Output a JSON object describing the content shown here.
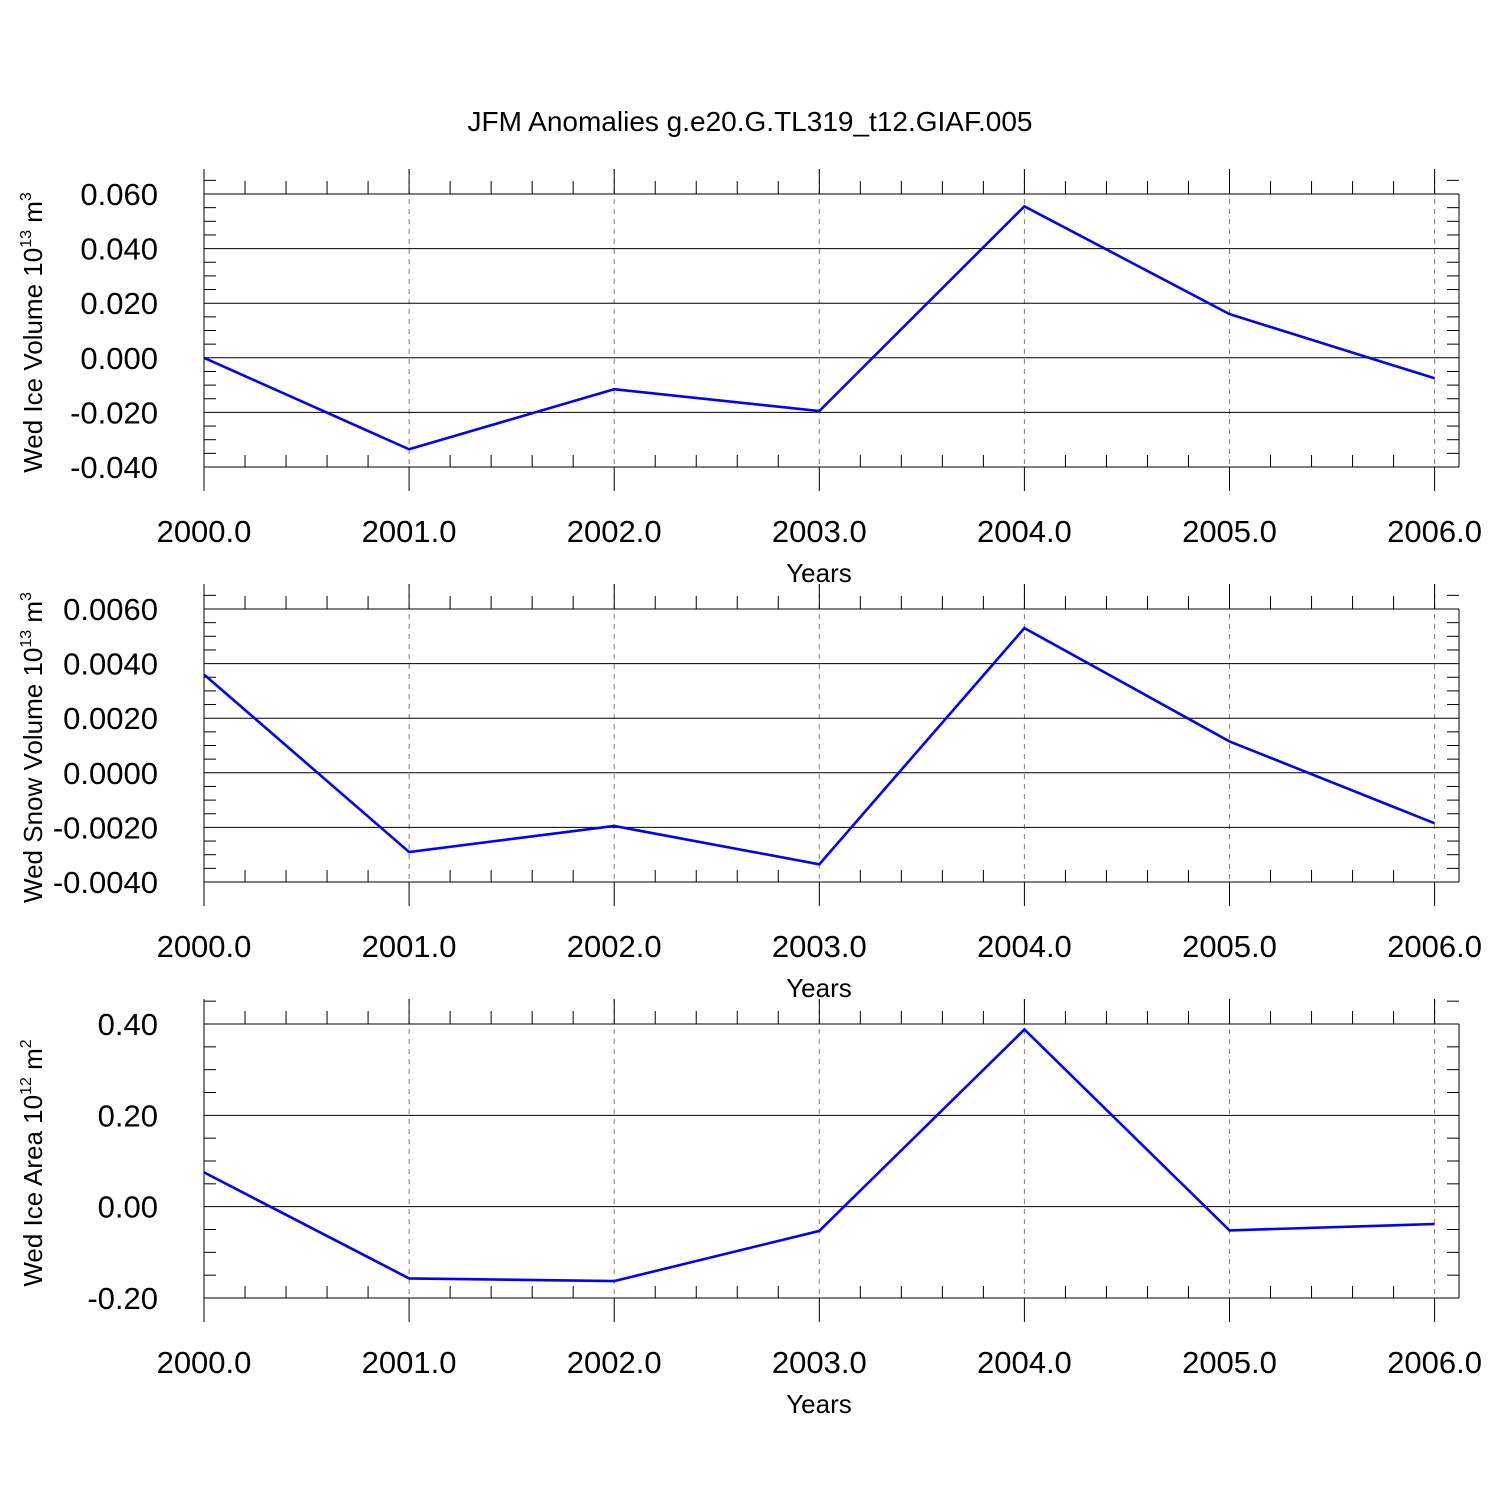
{
  "figure": {
    "title": "JFM Anomalies g.e20.G.TL319_t12.GIAF.005",
    "colors": {
      "series_line": "#0000ff",
      "axes": "#000000",
      "grid": "#808080",
      "background": "#ffffff"
    }
  },
  "chart_data": [
    {
      "type": "line",
      "ylabel": {
        "main": "Wed Ice Volume 10",
        "exponent": "13",
        "unit": " m",
        "unit_exponent": "3"
      },
      "xlabel": "Years",
      "x": [
        2000,
        2001,
        2002,
        2003,
        2004,
        2005,
        2006
      ],
      "xticks": [
        "2000.0",
        "2001.0",
        "2002.0",
        "2003.0",
        "2004.0",
        "2005.0",
        "2006.0"
      ],
      "xlim": [
        2000,
        2006.12
      ],
      "ylim": [
        -0.04,
        0.06
      ],
      "yticks": [
        "0.060",
        "0.040",
        "0.020",
        "0.000",
        "-0.020",
        "-0.040"
      ],
      "ytick_values": [
        0.06,
        0.04,
        0.02,
        0.0,
        -0.02,
        -0.04
      ],
      "y_minor_step": 0.005,
      "series": [
        {
          "values": [
            0.0,
            -0.0335,
            -0.0115,
            -0.0195,
            0.0555,
            0.016,
            -0.0075
          ]
        }
      ],
      "vertical_grid": "dashed at each year",
      "plot_top_above_ymax": 0.009
    },
    {
      "type": "line",
      "ylabel": {
        "main": "Wed Snow Volume 10",
        "exponent": "13",
        "unit": " m",
        "unit_exponent": "3"
      },
      "xlabel": "Years",
      "x": [
        2000,
        2001,
        2002,
        2003,
        2004,
        2005,
        2006
      ],
      "xticks": [
        "2000.0",
        "2001.0",
        "2002.0",
        "2003.0",
        "2004.0",
        "2005.0",
        "2006.0"
      ],
      "xlim": [
        2000,
        2006.12
      ],
      "ylim": [
        -0.004,
        0.006
      ],
      "yticks": [
        "0.0060",
        "0.0040",
        "0.0020",
        "0.0000",
        "-0.0020",
        "-0.0040"
      ],
      "ytick_values": [
        0.006,
        0.004,
        0.002,
        0.0,
        -0.002,
        -0.004
      ],
      "y_minor_step": 0.0005,
      "series": [
        {
          "values": [
            0.0036,
            -0.0029,
            -0.00195,
            -0.00335,
            0.0053,
            0.00115,
            -0.00185
          ]
        }
      ],
      "vertical_grid": "dashed at each year",
      "plot_top_above_ymax": 0.0009
    },
    {
      "type": "line",
      "ylabel": {
        "main": "Wed Ice Area 10",
        "exponent": "12",
        "unit": " m",
        "unit_exponent": "2"
      },
      "xlabel": "Years",
      "x": [
        2000,
        2001,
        2002,
        2003,
        2004,
        2005,
        2006
      ],
      "xticks": [
        "2000.0",
        "2001.0",
        "2002.0",
        "2003.0",
        "2004.0",
        "2005.0",
        "2006.0"
      ],
      "xlim": [
        2000,
        2006.12
      ],
      "ylim": [
        -0.2,
        0.4
      ],
      "yticks": [
        "0.40",
        "0.20",
        "0.00",
        "-0.20"
      ],
      "ytick_values": [
        0.4,
        0.2,
        0.0,
        -0.2
      ],
      "y_minor_step": 0.05,
      "series": [
        {
          "values": [
            0.075,
            -0.157,
            -0.163,
            -0.053,
            0.388,
            -0.052,
            -0.038
          ]
        }
      ],
      "vertical_grid": "dashed at each year",
      "plot_top_above_ymax": 0.055
    }
  ]
}
